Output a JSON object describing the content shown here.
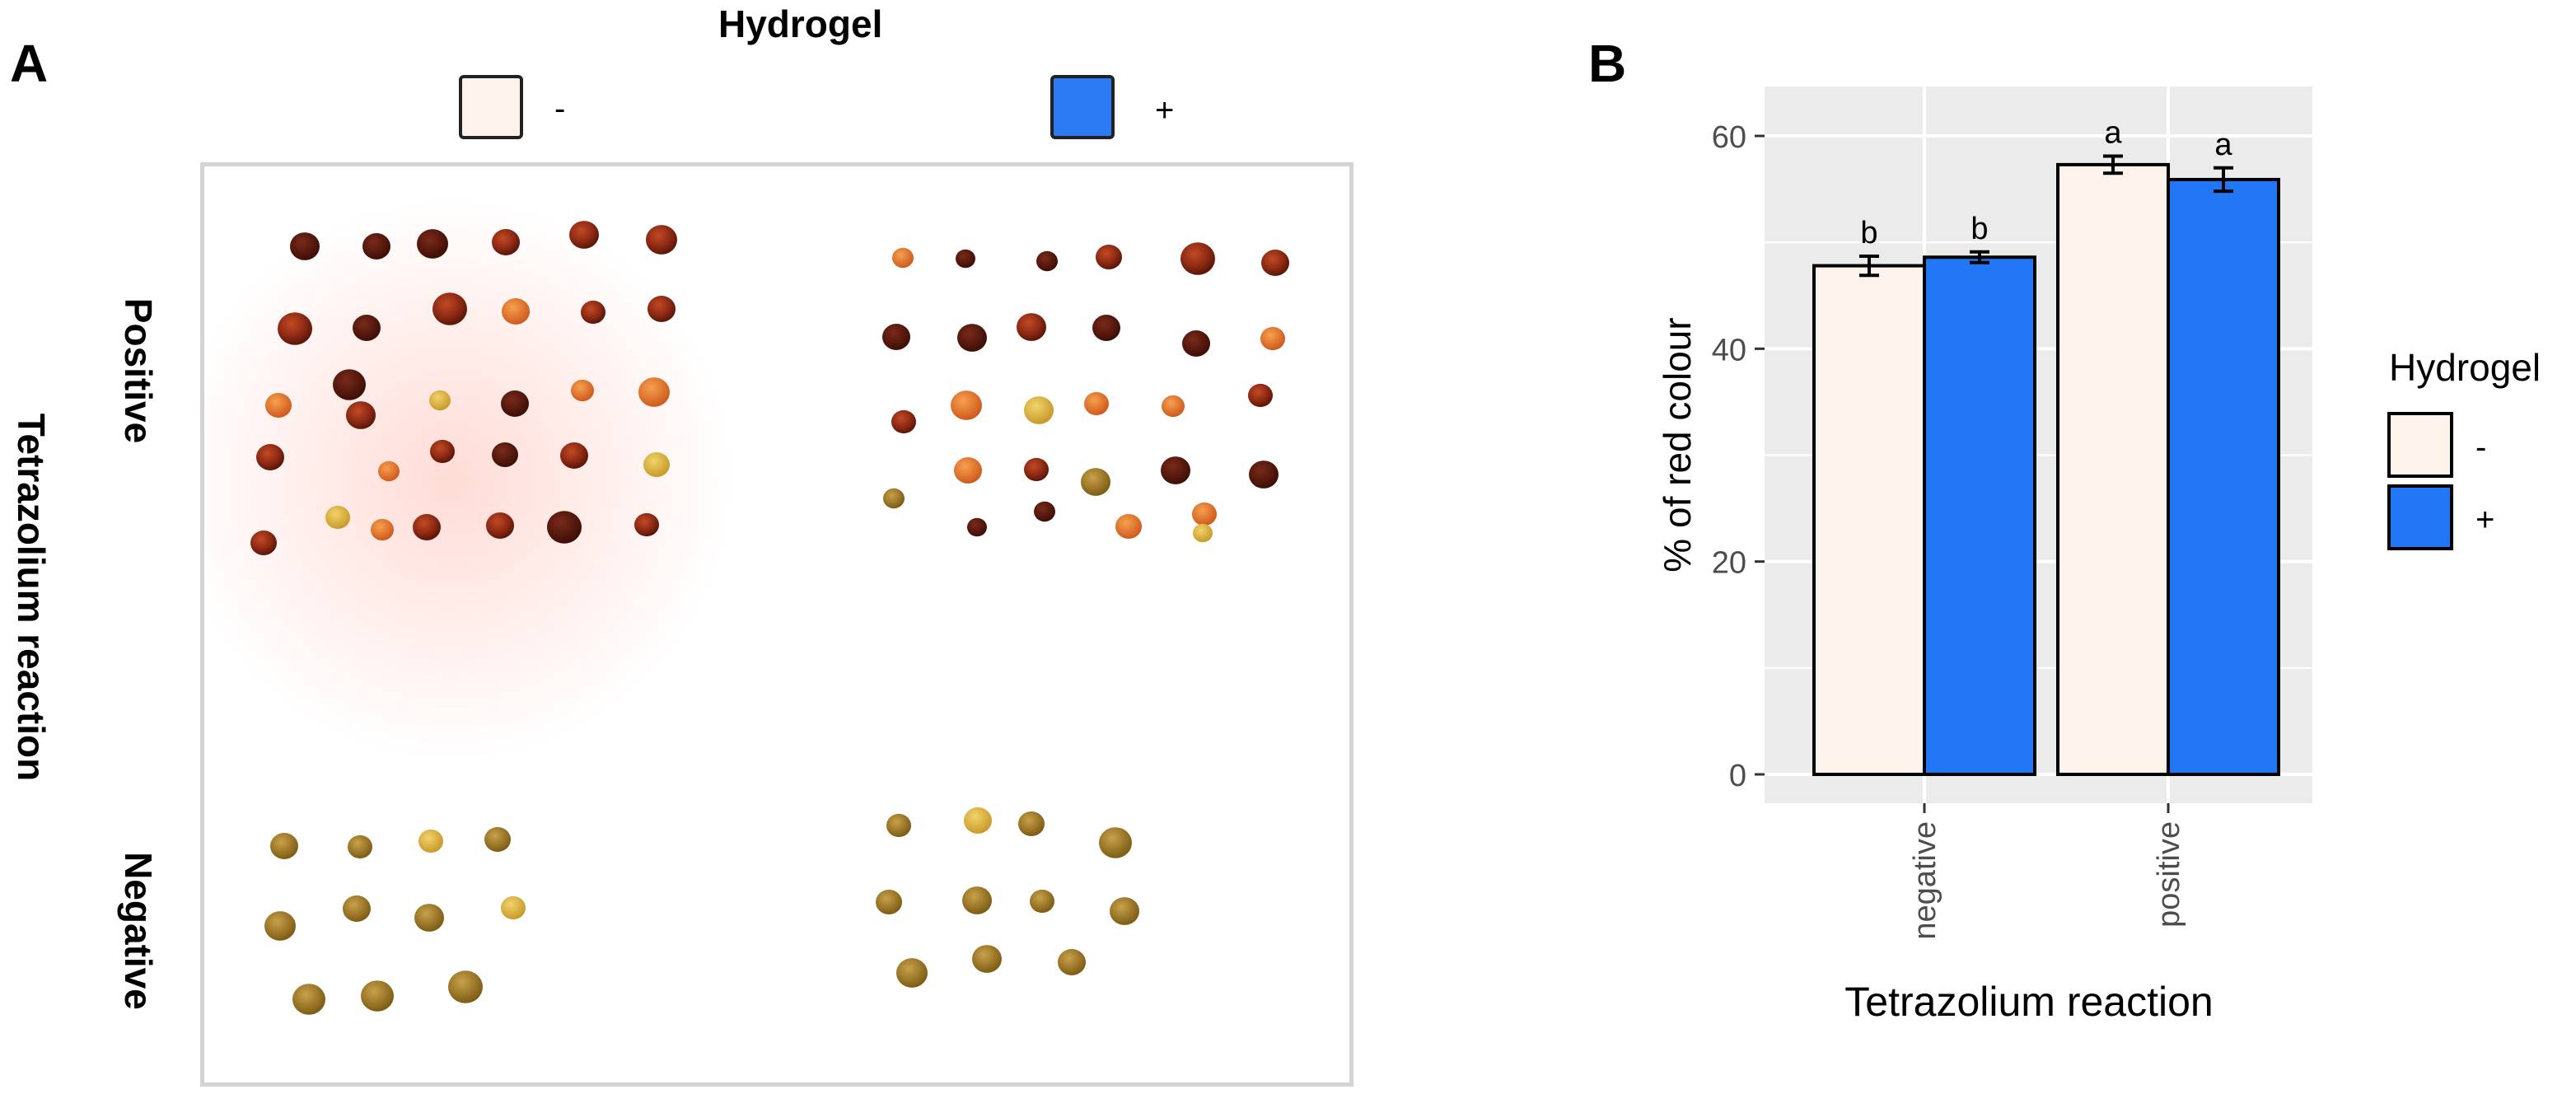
{
  "panel_a": {
    "label": "A",
    "legend_title": "Hydrogel",
    "legend": [
      {
        "sign": "-",
        "color": "#fdf2ec"
      },
      {
        "sign": "+",
        "color": "#2d7bf4"
      }
    ],
    "y_group_label": "Tetrazolium reaction",
    "row_labels": {
      "positive": "Positive",
      "negative": "Negative"
    }
  },
  "panel_b": {
    "label": "B"
  },
  "chart_data": {
    "type": "bar",
    "title": "",
    "xlabel": "Tetrazolium reaction",
    "ylabel": "% of red colour",
    "categories": [
      "negative",
      "positive"
    ],
    "ylim": [
      0,
      62
    ],
    "yticks": [
      0,
      20,
      40,
      60
    ],
    "grid": true,
    "legend_title": "Hydrogel",
    "legend_position": "right",
    "series": [
      {
        "name": "-",
        "color": "#fdf2ec",
        "values": [
          47.8,
          57.3
        ],
        "errors": [
          0.9,
          0.8
        ],
        "letters": [
          "b",
          "a"
        ]
      },
      {
        "name": "+",
        "color": "#2277f5",
        "values": [
          48.6,
          55.9
        ],
        "errors": [
          0.5,
          1.1
        ],
        "letters": [
          "b",
          "a"
        ]
      }
    ],
    "colors": {
      "panel_bg": "#ebebeb",
      "grid": "#ffffff",
      "bar_stroke": "#000000",
      "axis_text": "#4d4d4d"
    }
  }
}
